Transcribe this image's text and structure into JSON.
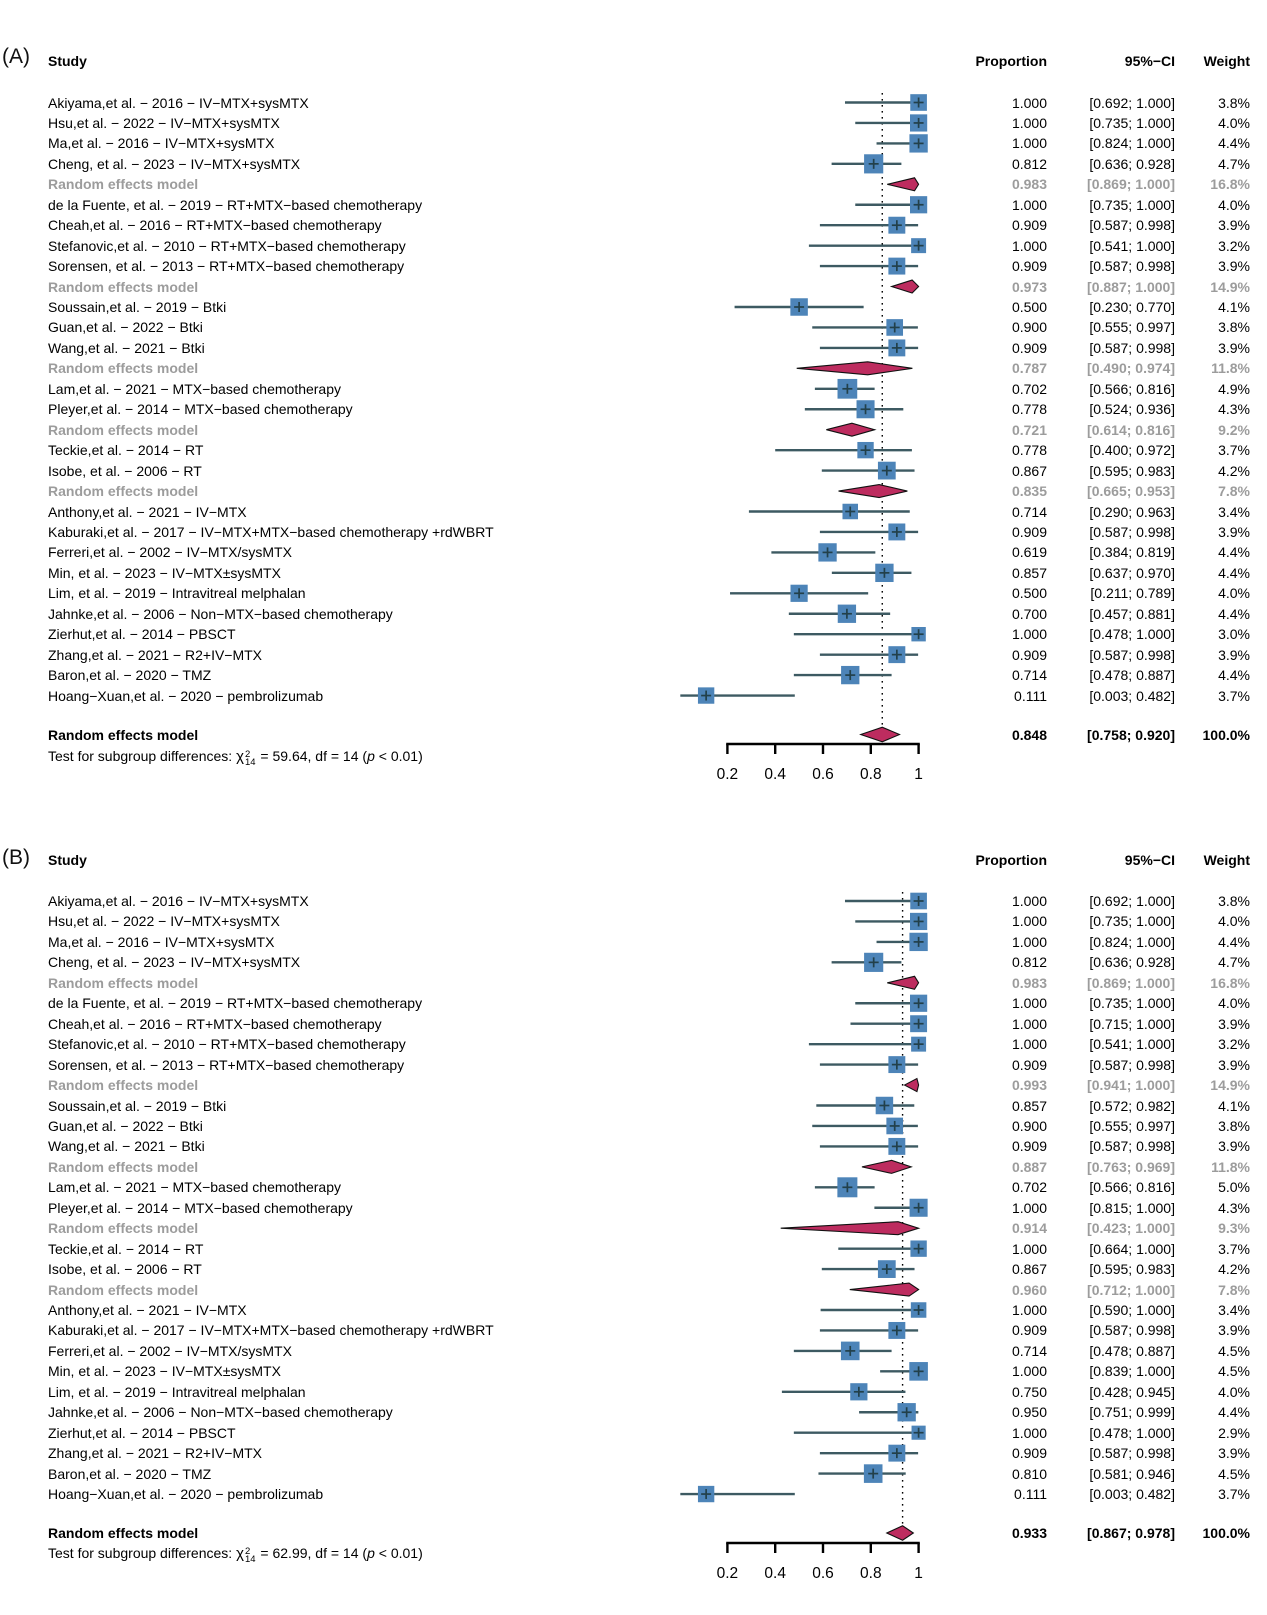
{
  "colors": {
    "square": "#4d84b8",
    "ci_line": "#3d5a62",
    "marker": "#22404a",
    "diamond": "#bd2c5f",
    "diamond_border": "#111111",
    "subgroup_text": "#9c9c9c",
    "axis": "#000000",
    "ref_line": "#000000"
  },
  "chart_data": [
    {
      "type": "forest",
      "panel_label": "(A)",
      "columns": {
        "study": "Study",
        "proportion": "Proportion",
        "ci": "95%−CI",
        "weight": "Weight"
      },
      "axis": {
        "min": 0.2,
        "max": 1.0,
        "ticks": [
          0.2,
          0.4,
          0.6,
          0.8,
          1.0
        ],
        "tick_labels": [
          "0.2",
          "0.4",
          "0.6",
          "0.8",
          "1"
        ]
      },
      "ref_line": 0.848,
      "rows": [
        {
          "type": "study",
          "label": "Akiyama,et al. − 2016 − IV−MTX+sysMTX",
          "est": 1.0,
          "lo": 0.692,
          "hi": 1.0,
          "proportion": "1.000",
          "ci": "[0.692; 1.000]",
          "weight": "3.8%",
          "w": 3.8
        },
        {
          "type": "study",
          "label": "Hsu,et al. − 2022 − IV−MTX+sysMTX",
          "est": 1.0,
          "lo": 0.735,
          "hi": 1.0,
          "proportion": "1.000",
          "ci": "[0.735; 1.000]",
          "weight": "4.0%",
          "w": 4.0
        },
        {
          "type": "study",
          "label": "Ma,et al. − 2016 − IV−MTX+sysMTX",
          "est": 1.0,
          "lo": 0.824,
          "hi": 1.0,
          "proportion": "1.000",
          "ci": "[0.824; 1.000]",
          "weight": "4.4%",
          "w": 4.4
        },
        {
          "type": "study",
          "label": "Cheng, et al. − 2023 − IV−MTX+sysMTX",
          "est": 0.812,
          "lo": 0.636,
          "hi": 0.928,
          "proportion": "0.812",
          "ci": "[0.636; 0.928]",
          "weight": "4.7%",
          "w": 4.7
        },
        {
          "type": "subgroup",
          "label": "Random effects model",
          "est": 0.983,
          "lo": 0.869,
          "hi": 1.0,
          "proportion": "0.983",
          "ci": "[0.869; 1.000]",
          "weight": "16.8%",
          "w": 16.8
        },
        {
          "type": "study",
          "label": "de la Fuente, et al. − 2019 − RT+MTX−based chemotherapy",
          "est": 1.0,
          "lo": 0.735,
          "hi": 1.0,
          "proportion": "1.000",
          "ci": "[0.735; 1.000]",
          "weight": "4.0%",
          "w": 4.0
        },
        {
          "type": "study",
          "label": "Cheah,et al. − 2016 − RT+MTX−based chemotherapy",
          "est": 0.909,
          "lo": 0.587,
          "hi": 0.998,
          "proportion": "0.909",
          "ci": "[0.587; 0.998]",
          "weight": "3.9%",
          "w": 3.9
        },
        {
          "type": "study",
          "label": "Stefanovic,et al. − 2010 − RT+MTX−based chemotherapy",
          "est": 1.0,
          "lo": 0.541,
          "hi": 1.0,
          "proportion": "1.000",
          "ci": "[0.541; 1.000]",
          "weight": "3.2%",
          "w": 3.2
        },
        {
          "type": "study",
          "label": "Sorensen, et al. − 2013 − RT+MTX−based chemotherapy",
          "est": 0.909,
          "lo": 0.587,
          "hi": 0.998,
          "proportion": "0.909",
          "ci": "[0.587; 0.998]",
          "weight": "3.9%",
          "w": 3.9
        },
        {
          "type": "subgroup",
          "label": "Random effects model",
          "est": 0.973,
          "lo": 0.887,
          "hi": 1.0,
          "proportion": "0.973",
          "ci": "[0.887; 1.000]",
          "weight": "14.9%",
          "w": 14.9
        },
        {
          "type": "study",
          "label": "Soussain,et al. − 2019 − Btki",
          "est": 0.5,
          "lo": 0.23,
          "hi": 0.77,
          "proportion": "0.500",
          "ci": "[0.230; 0.770]",
          "weight": "4.1%",
          "w": 4.1
        },
        {
          "type": "study",
          "label": "Guan,et al. − 2022 − Btki",
          "est": 0.9,
          "lo": 0.555,
          "hi": 0.997,
          "proportion": "0.900",
          "ci": "[0.555; 0.997]",
          "weight": "3.8%",
          "w": 3.8
        },
        {
          "type": "study",
          "label": "Wang,et al. − 2021 − Btki",
          "est": 0.909,
          "lo": 0.587,
          "hi": 0.998,
          "proportion": "0.909",
          "ci": "[0.587; 0.998]",
          "weight": "3.9%",
          "w": 3.9
        },
        {
          "type": "subgroup",
          "label": "Random effects model",
          "est": 0.787,
          "lo": 0.49,
          "hi": 0.974,
          "proportion": "0.787",
          "ci": "[0.490; 0.974]",
          "weight": "11.8%",
          "w": 11.8
        },
        {
          "type": "study",
          "label": "Lam,et al. − 2021 − MTX−based chemotherapy",
          "est": 0.702,
          "lo": 0.566,
          "hi": 0.816,
          "proportion": "0.702",
          "ci": "[0.566; 0.816]",
          "weight": "4.9%",
          "w": 4.9
        },
        {
          "type": "study",
          "label": "Pleyer,et al. − 2014 − MTX−based chemotherapy",
          "est": 0.778,
          "lo": 0.524,
          "hi": 0.936,
          "proportion": "0.778",
          "ci": "[0.524; 0.936]",
          "weight": "4.3%",
          "w": 4.3
        },
        {
          "type": "subgroup",
          "label": "Random effects model",
          "est": 0.721,
          "lo": 0.614,
          "hi": 0.816,
          "proportion": "0.721",
          "ci": "[0.614; 0.816]",
          "weight": "9.2%",
          "w": 9.2
        },
        {
          "type": "study",
          "label": "Teckie,et al. − 2014 − RT",
          "est": 0.778,
          "lo": 0.4,
          "hi": 0.972,
          "proportion": "0.778",
          "ci": "[0.400; 0.972]",
          "weight": "3.7%",
          "w": 3.7
        },
        {
          "type": "study",
          "label": "Isobe, et al. − 2006 − RT",
          "est": 0.867,
          "lo": 0.595,
          "hi": 0.983,
          "proportion": "0.867",
          "ci": "[0.595; 0.983]",
          "weight": "4.2%",
          "w": 4.2
        },
        {
          "type": "subgroup",
          "label": "Random effects model",
          "est": 0.835,
          "lo": 0.665,
          "hi": 0.953,
          "proportion": "0.835",
          "ci": "[0.665; 0.953]",
          "weight": "7.8%",
          "w": 7.8
        },
        {
          "type": "study",
          "label": "Anthony,et al. − 2021 − IV−MTX",
          "est": 0.714,
          "lo": 0.29,
          "hi": 0.963,
          "proportion": "0.714",
          "ci": "[0.290; 0.963]",
          "weight": "3.4%",
          "w": 3.4
        },
        {
          "type": "study",
          "label": "Kaburaki,et al. − 2017 − IV−MTX+MTX−based chemotherapy +rdWBRT",
          "est": 0.909,
          "lo": 0.587,
          "hi": 0.998,
          "proportion": "0.909",
          "ci": "[0.587; 0.998]",
          "weight": "3.9%",
          "w": 3.9
        },
        {
          "type": "study",
          "label": "Ferreri,et al. − 2002 − IV−MTX/sysMTX",
          "est": 0.619,
          "lo": 0.384,
          "hi": 0.819,
          "proportion": "0.619",
          "ci": "[0.384; 0.819]",
          "weight": "4.4%",
          "w": 4.4
        },
        {
          "type": "study",
          "label": "Min, et al. − 2023 − IV−MTX±sysMTX",
          "est": 0.857,
          "lo": 0.637,
          "hi": 0.97,
          "proportion": "0.857",
          "ci": "[0.637; 0.970]",
          "weight": "4.4%",
          "w": 4.4
        },
        {
          "type": "study",
          "label": "Lim, et al. − 2019 − Intravitreal melphalan",
          "est": 0.5,
          "lo": 0.211,
          "hi": 0.789,
          "proportion": "0.500",
          "ci": "[0.211; 0.789]",
          "weight": "4.0%",
          "w": 4.0
        },
        {
          "type": "study",
          "label": "Jahnke,et al. − 2006 − Non−MTX−based chemotherapy",
          "est": 0.7,
          "lo": 0.457,
          "hi": 0.881,
          "proportion": "0.700",
          "ci": "[0.457; 0.881]",
          "weight": "4.4%",
          "w": 4.4
        },
        {
          "type": "study",
          "label": "Zierhut,et al. − 2014 − PBSCT",
          "est": 1.0,
          "lo": 0.478,
          "hi": 1.0,
          "proportion": "1.000",
          "ci": "[0.478; 1.000]",
          "weight": "3.0%",
          "w": 3.0
        },
        {
          "type": "study",
          "label": "Zhang,et al. − 2021 − R2+IV−MTX",
          "est": 0.909,
          "lo": 0.587,
          "hi": 0.998,
          "proportion": "0.909",
          "ci": "[0.587; 0.998]",
          "weight": "3.9%",
          "w": 3.9
        },
        {
          "type": "study",
          "label": "Baron,et al. − 2020 − TMZ",
          "est": 0.714,
          "lo": 0.478,
          "hi": 0.887,
          "proportion": "0.714",
          "ci": "[0.478; 0.887]",
          "weight": "4.4%",
          "w": 4.4
        },
        {
          "type": "study",
          "label": "Hoang−Xuan,et al. − 2020 − pembrolizumab",
          "est": 0.111,
          "lo": 0.003,
          "hi": 0.482,
          "proportion": "0.111",
          "ci": "[0.003; 0.482]",
          "weight": "3.7%",
          "w": 3.7
        }
      ],
      "overall": {
        "label": "Random effects model",
        "est": 0.848,
        "lo": 0.758,
        "hi": 0.92,
        "proportion": "0.848",
        "ci": "[0.758; 0.920]",
        "weight": "100.0%"
      },
      "test": {
        "prefix": "Test for subgroup differences: ",
        "chi": "χ",
        "sup": "2",
        "sub": "14",
        "mid": " = 59.64, df = 14 (",
        "p": "p",
        "suffix": " < 0.01)"
      }
    },
    {
      "type": "forest",
      "panel_label": "(B)",
      "columns": {
        "study": "Study",
        "proportion": "Proportion",
        "ci": "95%−CI",
        "weight": "Weight"
      },
      "axis": {
        "min": 0.2,
        "max": 1.0,
        "ticks": [
          0.2,
          0.4,
          0.6,
          0.8,
          1.0
        ],
        "tick_labels": [
          "0.2",
          "0.4",
          "0.6",
          "0.8",
          "1"
        ]
      },
      "ref_line": 0.933,
      "rows": [
        {
          "type": "study",
          "label": "Akiyama,et al. − 2016 − IV−MTX+sysMTX",
          "est": 1.0,
          "lo": 0.692,
          "hi": 1.0,
          "proportion": "1.000",
          "ci": "[0.692; 1.000]",
          "weight": "3.8%",
          "w": 3.8
        },
        {
          "type": "study",
          "label": "Hsu,et al. − 2022 − IV−MTX+sysMTX",
          "est": 1.0,
          "lo": 0.735,
          "hi": 1.0,
          "proportion": "1.000",
          "ci": "[0.735; 1.000]",
          "weight": "4.0%",
          "w": 4.0
        },
        {
          "type": "study",
          "label": "Ma,et al. − 2016 − IV−MTX+sysMTX",
          "est": 1.0,
          "lo": 0.824,
          "hi": 1.0,
          "proportion": "1.000",
          "ci": "[0.824; 1.000]",
          "weight": "4.4%",
          "w": 4.4
        },
        {
          "type": "study",
          "label": "Cheng, et al. − 2023 − IV−MTX+sysMTX",
          "est": 0.812,
          "lo": 0.636,
          "hi": 0.928,
          "proportion": "0.812",
          "ci": "[0.636; 0.928]",
          "weight": "4.7%",
          "w": 4.7
        },
        {
          "type": "subgroup",
          "label": "Random effects model",
          "est": 0.983,
          "lo": 0.869,
          "hi": 1.0,
          "proportion": "0.983",
          "ci": "[0.869; 1.000]",
          "weight": "16.8%",
          "w": 16.8
        },
        {
          "type": "study",
          "label": "de la Fuente, et al. − 2019 − RT+MTX−based chemotherapy",
          "est": 1.0,
          "lo": 0.735,
          "hi": 1.0,
          "proportion": "1.000",
          "ci": "[0.735; 1.000]",
          "weight": "4.0%",
          "w": 4.0
        },
        {
          "type": "study",
          "label": "Cheah,et al. − 2016 − RT+MTX−based chemotherapy",
          "est": 1.0,
          "lo": 0.715,
          "hi": 1.0,
          "proportion": "1.000",
          "ci": "[0.715; 1.000]",
          "weight": "3.9%",
          "w": 3.9
        },
        {
          "type": "study",
          "label": "Stefanovic,et al. − 2010 − RT+MTX−based chemotherapy",
          "est": 1.0,
          "lo": 0.541,
          "hi": 1.0,
          "proportion": "1.000",
          "ci": "[0.541; 1.000]",
          "weight": "3.2%",
          "w": 3.2
        },
        {
          "type": "study",
          "label": "Sorensen, et al. − 2013 − RT+MTX−based chemotherapy",
          "est": 0.909,
          "lo": 0.587,
          "hi": 0.998,
          "proportion": "0.909",
          "ci": "[0.587; 0.998]",
          "weight": "3.9%",
          "w": 3.9
        },
        {
          "type": "subgroup",
          "label": "Random effects model",
          "est": 0.993,
          "lo": 0.941,
          "hi": 1.0,
          "proportion": "0.993",
          "ci": "[0.941; 1.000]",
          "weight": "14.9%",
          "w": 14.9
        },
        {
          "type": "study",
          "label": "Soussain,et al. − 2019 − Btki",
          "est": 0.857,
          "lo": 0.572,
          "hi": 0.982,
          "proportion": "0.857",
          "ci": "[0.572; 0.982]",
          "weight": "4.1%",
          "w": 4.1
        },
        {
          "type": "study",
          "label": "Guan,et al. − 2022 − Btki",
          "est": 0.9,
          "lo": 0.555,
          "hi": 0.997,
          "proportion": "0.900",
          "ci": "[0.555; 0.997]",
          "weight": "3.8%",
          "w": 3.8
        },
        {
          "type": "study",
          "label": "Wang,et al. − 2021 − Btki",
          "est": 0.909,
          "lo": 0.587,
          "hi": 0.998,
          "proportion": "0.909",
          "ci": "[0.587; 0.998]",
          "weight": "3.9%",
          "w": 3.9
        },
        {
          "type": "subgroup",
          "label": "Random effects model",
          "est": 0.887,
          "lo": 0.763,
          "hi": 0.969,
          "proportion": "0.887",
          "ci": "[0.763; 0.969]",
          "weight": "11.8%",
          "w": 11.8
        },
        {
          "type": "study",
          "label": "Lam,et al. − 2021 − MTX−based chemotherapy",
          "est": 0.702,
          "lo": 0.566,
          "hi": 0.816,
          "proportion": "0.702",
          "ci": "[0.566; 0.816]",
          "weight": "5.0%",
          "w": 5.0
        },
        {
          "type": "study",
          "label": "Pleyer,et al. − 2014 − MTX−based chemotherapy",
          "est": 1.0,
          "lo": 0.815,
          "hi": 1.0,
          "proportion": "1.000",
          "ci": "[0.815; 1.000]",
          "weight": "4.3%",
          "w": 4.3
        },
        {
          "type": "subgroup",
          "label": "Random effects model",
          "est": 0.914,
          "lo": 0.423,
          "hi": 1.0,
          "proportion": "0.914",
          "ci": "[0.423; 1.000]",
          "weight": "9.3%",
          "w": 9.3
        },
        {
          "type": "study",
          "label": "Teckie,et al. − 2014 − RT",
          "est": 1.0,
          "lo": 0.664,
          "hi": 1.0,
          "proportion": "1.000",
          "ci": "[0.664; 1.000]",
          "weight": "3.7%",
          "w": 3.7
        },
        {
          "type": "study",
          "label": "Isobe, et al. − 2006 − RT",
          "est": 0.867,
          "lo": 0.595,
          "hi": 0.983,
          "proportion": "0.867",
          "ci": "[0.595; 0.983]",
          "weight": "4.2%",
          "w": 4.2
        },
        {
          "type": "subgroup",
          "label": "Random effects model",
          "est": 0.96,
          "lo": 0.712,
          "hi": 1.0,
          "proportion": "0.960",
          "ci": "[0.712; 1.000]",
          "weight": "7.8%",
          "w": 7.8
        },
        {
          "type": "study",
          "label": "Anthony,et al. − 2021 − IV−MTX",
          "est": 1.0,
          "lo": 0.59,
          "hi": 1.0,
          "proportion": "1.000",
          "ci": "[0.590; 1.000]",
          "weight": "3.4%",
          "w": 3.4
        },
        {
          "type": "study",
          "label": "Kaburaki,et al. − 2017 − IV−MTX+MTX−based chemotherapy +rdWBRT",
          "est": 0.909,
          "lo": 0.587,
          "hi": 0.998,
          "proportion": "0.909",
          "ci": "[0.587; 0.998]",
          "weight": "3.9%",
          "w": 3.9
        },
        {
          "type": "study",
          "label": "Ferreri,et al. − 2002 − IV−MTX/sysMTX",
          "est": 0.714,
          "lo": 0.478,
          "hi": 0.887,
          "proportion": "0.714",
          "ci": "[0.478; 0.887]",
          "weight": "4.5%",
          "w": 4.5
        },
        {
          "type": "study",
          "label": "Min, et al. − 2023 − IV−MTX±sysMTX",
          "est": 1.0,
          "lo": 0.839,
          "hi": 1.0,
          "proportion": "1.000",
          "ci": "[0.839; 1.000]",
          "weight": "4.5%",
          "w": 4.5
        },
        {
          "type": "study",
          "label": "Lim, et al. − 2019 − Intravitreal melphalan",
          "est": 0.75,
          "lo": 0.428,
          "hi": 0.945,
          "proportion": "0.750",
          "ci": "[0.428; 0.945]",
          "weight": "4.0%",
          "w": 4.0
        },
        {
          "type": "study",
          "label": "Jahnke,et al. − 2006 − Non−MTX−based chemotherapy",
          "est": 0.95,
          "lo": 0.751,
          "hi": 0.999,
          "proportion": "0.950",
          "ci": "[0.751; 0.999]",
          "weight": "4.4%",
          "w": 4.4
        },
        {
          "type": "study",
          "label": "Zierhut,et al. − 2014 − PBSCT",
          "est": 1.0,
          "lo": 0.478,
          "hi": 1.0,
          "proportion": "1.000",
          "ci": "[0.478; 1.000]",
          "weight": "2.9%",
          "w": 2.9
        },
        {
          "type": "study",
          "label": "Zhang,et al. − 2021 − R2+IV−MTX",
          "est": 0.909,
          "lo": 0.587,
          "hi": 0.998,
          "proportion": "0.909",
          "ci": "[0.587; 0.998]",
          "weight": "3.9%",
          "w": 3.9
        },
        {
          "type": "study",
          "label": "Baron,et al. − 2020 − TMZ",
          "est": 0.81,
          "lo": 0.581,
          "hi": 0.946,
          "proportion": "0.810",
          "ci": "[0.581; 0.946]",
          "weight": "4.5%",
          "w": 4.5
        },
        {
          "type": "study",
          "label": "Hoang−Xuan,et al. − 2020 − pembrolizumab",
          "est": 0.111,
          "lo": 0.003,
          "hi": 0.482,
          "proportion": "0.111",
          "ci": "[0.003; 0.482]",
          "weight": "3.7%",
          "w": 3.7
        }
      ],
      "overall": {
        "label": "Random effects model",
        "est": 0.933,
        "lo": 0.867,
        "hi": 0.978,
        "proportion": "0.933",
        "ci": "[0.867; 0.978]",
        "weight": "100.0%"
      },
      "test": {
        "prefix": "Test for subgroup differences: ",
        "chi": "χ",
        "sup": "2",
        "sub": "14",
        "mid": " = 62.99, df = 14 (",
        "p": "p",
        "suffix": " < 0.01)"
      }
    }
  ]
}
